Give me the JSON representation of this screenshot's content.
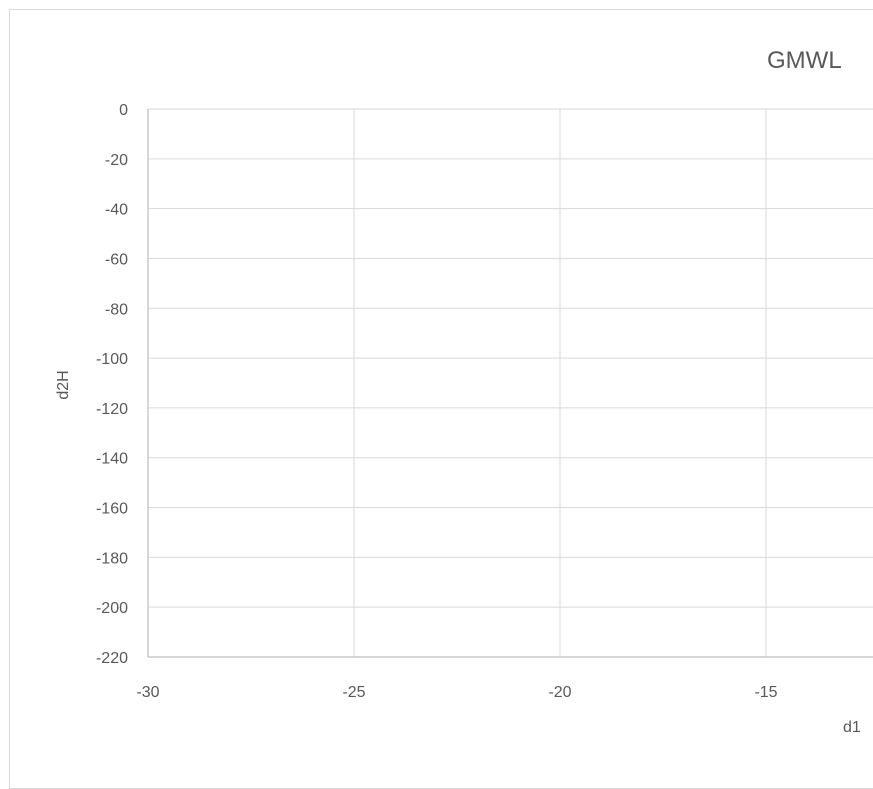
{
  "chart_data": {
    "type": "scatter",
    "title": "GMWL",
    "xlabel": "d1",
    "ylabel": "d2H",
    "xlim": [
      -30,
      -12.5
    ],
    "ylim": [
      -220,
      0
    ],
    "x_ticks": [
      "-30",
      "-25",
      "-20",
      "-15"
    ],
    "y_ticks": [
      "0",
      "-20",
      "-40",
      "-60",
      "-80",
      "-100",
      "-120",
      "-140",
      "-160",
      "-180",
      "-200",
      "-220"
    ],
    "grid": true,
    "legend": "none",
    "series": [],
    "colors": {
      "grid": "#d9d9d9",
      "axis": "#bfbfbf",
      "text": "#595959",
      "border": "#d9d9d9"
    }
  }
}
